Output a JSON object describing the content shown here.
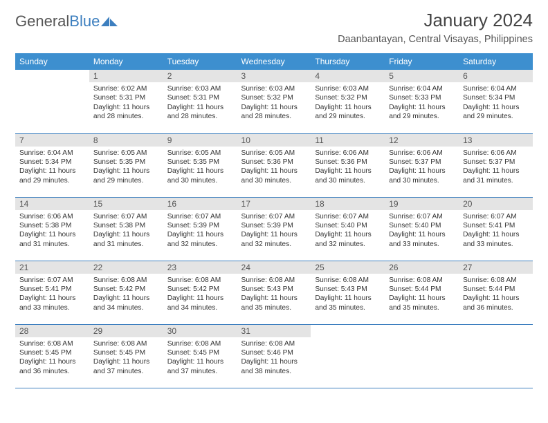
{
  "logo": {
    "part1": "General",
    "part2": "Blue"
  },
  "title": "January 2024",
  "location": "Daanbantayan, Central Visayas, Philippines",
  "colors": {
    "header_bg": "#3d8fcf",
    "header_text": "#ffffff",
    "daynum_bg": "#e4e4e4",
    "cell_border": "#3d7fbf",
    "logo_blue": "#3d7fbf"
  },
  "day_headers": [
    "Sunday",
    "Monday",
    "Tuesday",
    "Wednesday",
    "Thursday",
    "Friday",
    "Saturday"
  ],
  "weeks": [
    [
      {
        "n": "",
        "sunrise": "",
        "sunset": "",
        "daylight1": "",
        "daylight2": ""
      },
      {
        "n": "1",
        "sunrise": "Sunrise: 6:02 AM",
        "sunset": "Sunset: 5:31 PM",
        "daylight1": "Daylight: 11 hours",
        "daylight2": "and 28 minutes."
      },
      {
        "n": "2",
        "sunrise": "Sunrise: 6:03 AM",
        "sunset": "Sunset: 5:31 PM",
        "daylight1": "Daylight: 11 hours",
        "daylight2": "and 28 minutes."
      },
      {
        "n": "3",
        "sunrise": "Sunrise: 6:03 AM",
        "sunset": "Sunset: 5:32 PM",
        "daylight1": "Daylight: 11 hours",
        "daylight2": "and 28 minutes."
      },
      {
        "n": "4",
        "sunrise": "Sunrise: 6:03 AM",
        "sunset": "Sunset: 5:32 PM",
        "daylight1": "Daylight: 11 hours",
        "daylight2": "and 29 minutes."
      },
      {
        "n": "5",
        "sunrise": "Sunrise: 6:04 AM",
        "sunset": "Sunset: 5:33 PM",
        "daylight1": "Daylight: 11 hours",
        "daylight2": "and 29 minutes."
      },
      {
        "n": "6",
        "sunrise": "Sunrise: 6:04 AM",
        "sunset": "Sunset: 5:34 PM",
        "daylight1": "Daylight: 11 hours",
        "daylight2": "and 29 minutes."
      }
    ],
    [
      {
        "n": "7",
        "sunrise": "Sunrise: 6:04 AM",
        "sunset": "Sunset: 5:34 PM",
        "daylight1": "Daylight: 11 hours",
        "daylight2": "and 29 minutes."
      },
      {
        "n": "8",
        "sunrise": "Sunrise: 6:05 AM",
        "sunset": "Sunset: 5:35 PM",
        "daylight1": "Daylight: 11 hours",
        "daylight2": "and 29 minutes."
      },
      {
        "n": "9",
        "sunrise": "Sunrise: 6:05 AM",
        "sunset": "Sunset: 5:35 PM",
        "daylight1": "Daylight: 11 hours",
        "daylight2": "and 30 minutes."
      },
      {
        "n": "10",
        "sunrise": "Sunrise: 6:05 AM",
        "sunset": "Sunset: 5:36 PM",
        "daylight1": "Daylight: 11 hours",
        "daylight2": "and 30 minutes."
      },
      {
        "n": "11",
        "sunrise": "Sunrise: 6:06 AM",
        "sunset": "Sunset: 5:36 PM",
        "daylight1": "Daylight: 11 hours",
        "daylight2": "and 30 minutes."
      },
      {
        "n": "12",
        "sunrise": "Sunrise: 6:06 AM",
        "sunset": "Sunset: 5:37 PM",
        "daylight1": "Daylight: 11 hours",
        "daylight2": "and 30 minutes."
      },
      {
        "n": "13",
        "sunrise": "Sunrise: 6:06 AM",
        "sunset": "Sunset: 5:37 PM",
        "daylight1": "Daylight: 11 hours",
        "daylight2": "and 31 minutes."
      }
    ],
    [
      {
        "n": "14",
        "sunrise": "Sunrise: 6:06 AM",
        "sunset": "Sunset: 5:38 PM",
        "daylight1": "Daylight: 11 hours",
        "daylight2": "and 31 minutes."
      },
      {
        "n": "15",
        "sunrise": "Sunrise: 6:07 AM",
        "sunset": "Sunset: 5:38 PM",
        "daylight1": "Daylight: 11 hours",
        "daylight2": "and 31 minutes."
      },
      {
        "n": "16",
        "sunrise": "Sunrise: 6:07 AM",
        "sunset": "Sunset: 5:39 PM",
        "daylight1": "Daylight: 11 hours",
        "daylight2": "and 32 minutes."
      },
      {
        "n": "17",
        "sunrise": "Sunrise: 6:07 AM",
        "sunset": "Sunset: 5:39 PM",
        "daylight1": "Daylight: 11 hours",
        "daylight2": "and 32 minutes."
      },
      {
        "n": "18",
        "sunrise": "Sunrise: 6:07 AM",
        "sunset": "Sunset: 5:40 PM",
        "daylight1": "Daylight: 11 hours",
        "daylight2": "and 32 minutes."
      },
      {
        "n": "19",
        "sunrise": "Sunrise: 6:07 AM",
        "sunset": "Sunset: 5:40 PM",
        "daylight1": "Daylight: 11 hours",
        "daylight2": "and 33 minutes."
      },
      {
        "n": "20",
        "sunrise": "Sunrise: 6:07 AM",
        "sunset": "Sunset: 5:41 PM",
        "daylight1": "Daylight: 11 hours",
        "daylight2": "and 33 minutes."
      }
    ],
    [
      {
        "n": "21",
        "sunrise": "Sunrise: 6:07 AM",
        "sunset": "Sunset: 5:41 PM",
        "daylight1": "Daylight: 11 hours",
        "daylight2": "and 33 minutes."
      },
      {
        "n": "22",
        "sunrise": "Sunrise: 6:08 AM",
        "sunset": "Sunset: 5:42 PM",
        "daylight1": "Daylight: 11 hours",
        "daylight2": "and 34 minutes."
      },
      {
        "n": "23",
        "sunrise": "Sunrise: 6:08 AM",
        "sunset": "Sunset: 5:42 PM",
        "daylight1": "Daylight: 11 hours",
        "daylight2": "and 34 minutes."
      },
      {
        "n": "24",
        "sunrise": "Sunrise: 6:08 AM",
        "sunset": "Sunset: 5:43 PM",
        "daylight1": "Daylight: 11 hours",
        "daylight2": "and 35 minutes."
      },
      {
        "n": "25",
        "sunrise": "Sunrise: 6:08 AM",
        "sunset": "Sunset: 5:43 PM",
        "daylight1": "Daylight: 11 hours",
        "daylight2": "and 35 minutes."
      },
      {
        "n": "26",
        "sunrise": "Sunrise: 6:08 AM",
        "sunset": "Sunset: 5:44 PM",
        "daylight1": "Daylight: 11 hours",
        "daylight2": "and 35 minutes."
      },
      {
        "n": "27",
        "sunrise": "Sunrise: 6:08 AM",
        "sunset": "Sunset: 5:44 PM",
        "daylight1": "Daylight: 11 hours",
        "daylight2": "and 36 minutes."
      }
    ],
    [
      {
        "n": "28",
        "sunrise": "Sunrise: 6:08 AM",
        "sunset": "Sunset: 5:45 PM",
        "daylight1": "Daylight: 11 hours",
        "daylight2": "and 36 minutes."
      },
      {
        "n": "29",
        "sunrise": "Sunrise: 6:08 AM",
        "sunset": "Sunset: 5:45 PM",
        "daylight1": "Daylight: 11 hours",
        "daylight2": "and 37 minutes."
      },
      {
        "n": "30",
        "sunrise": "Sunrise: 6:08 AM",
        "sunset": "Sunset: 5:45 PM",
        "daylight1": "Daylight: 11 hours",
        "daylight2": "and 37 minutes."
      },
      {
        "n": "31",
        "sunrise": "Sunrise: 6:08 AM",
        "sunset": "Sunset: 5:46 PM",
        "daylight1": "Daylight: 11 hours",
        "daylight2": "and 38 minutes."
      },
      {
        "n": "",
        "sunrise": "",
        "sunset": "",
        "daylight1": "",
        "daylight2": ""
      },
      {
        "n": "",
        "sunrise": "",
        "sunset": "",
        "daylight1": "",
        "daylight2": ""
      },
      {
        "n": "",
        "sunrise": "",
        "sunset": "",
        "daylight1": "",
        "daylight2": ""
      }
    ]
  ]
}
